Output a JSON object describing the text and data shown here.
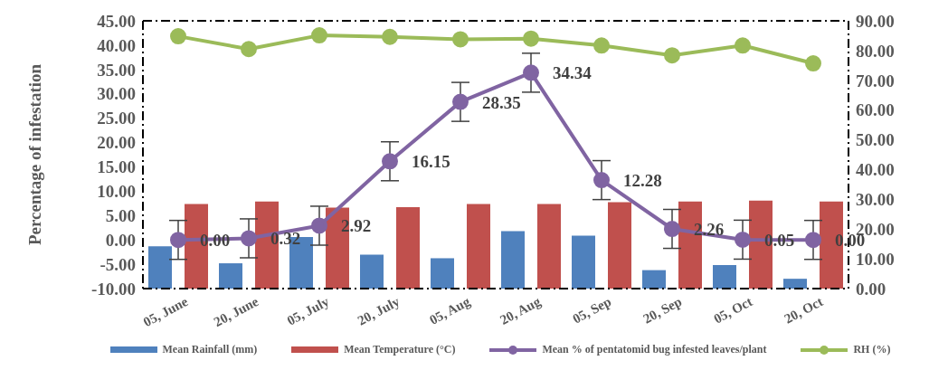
{
  "chart_data": {
    "type": "bar",
    "ylabel": "Percentage of infestation",
    "categories": [
      "05, June",
      "20, June",
      "05, July",
      "20, July",
      "05, Aug",
      "20, Aug",
      "05, Sep",
      "20, Sep",
      "05, Oct",
      "20, Oct"
    ],
    "series": [
      {
        "name": "Mean Rainfall (mm)",
        "axis": "y2",
        "color": "#4f81bd",
        "values": [
          14.2,
          8.5,
          17.3,
          11.4,
          10.2,
          19.3,
          17.8,
          6.2,
          7.9,
          3.3
        ]
      },
      {
        "name": "Mean Temperature (°C)",
        "axis": "y2",
        "color": "#c0504d",
        "values": [
          28.4,
          29.3,
          27.2,
          27.4,
          28.4,
          28.4,
          29.0,
          29.3,
          29.6,
          29.3
        ]
      },
      {
        "name": "Mean % of pentatomid bug infested leaves/plant",
        "type": "line",
        "color": "#8064a2",
        "values": [
          0,
          0.32,
          2.92,
          16.15,
          28.35,
          34.34,
          12.28,
          2.26,
          0.05,
          0
        ],
        "errors": [
          4,
          4,
          4,
          4,
          4,
          4,
          4,
          4,
          4,
          4
        ],
        "value_labels": [
          "0.00",
          "0.32",
          "2.92",
          "16.15",
          "28.35",
          "34.34",
          "12.28",
          "2.26",
          "0.05",
          "0.00"
        ]
      },
      {
        "name": "RH (%)",
        "type": "line",
        "axis": "y2",
        "color": "#9bbb59",
        "values": [
          84.8,
          80.5,
          85.1,
          84.6,
          83.8,
          84.0,
          81.7,
          78.4,
          81.7,
          75.7
        ]
      }
    ],
    "ylim": [
      -10,
      45
    ],
    "yticks": [
      {
        "value": -10,
        "label": "-10.00"
      },
      {
        "value": -5,
        "label": "-5.00"
      },
      {
        "value": 0,
        "label": "0.00"
      },
      {
        "value": 5,
        "label": "5.00"
      },
      {
        "value": 10,
        "label": "10.00"
      },
      {
        "value": 15,
        "label": "15.00"
      },
      {
        "value": 20,
        "label": "20.00"
      },
      {
        "value": 25,
        "label": "25.00"
      },
      {
        "value": 30,
        "label": "30.00"
      },
      {
        "value": 35,
        "label": "35.00"
      },
      {
        "value": 40,
        "label": "40.00"
      },
      {
        "value": 45,
        "label": "45.00"
      }
    ],
    "y2lim": [
      0,
      90
    ],
    "y2ticks": [
      {
        "value": 0,
        "label": "0.00"
      },
      {
        "value": 10,
        "label": "10.00"
      },
      {
        "value": 20,
        "label": "20.00"
      },
      {
        "value": 30,
        "label": "30.00"
      },
      {
        "value": 40,
        "label": "40.00"
      },
      {
        "value": 50,
        "label": "50.00"
      },
      {
        "value": 60,
        "label": "60.00"
      },
      {
        "value": 70,
        "label": "70.00"
      },
      {
        "value": 80,
        "label": "80.00"
      },
      {
        "value": 90,
        "label": "90.00"
      }
    ],
    "grid": false,
    "legend": "bottom",
    "marker": "circle"
  }
}
